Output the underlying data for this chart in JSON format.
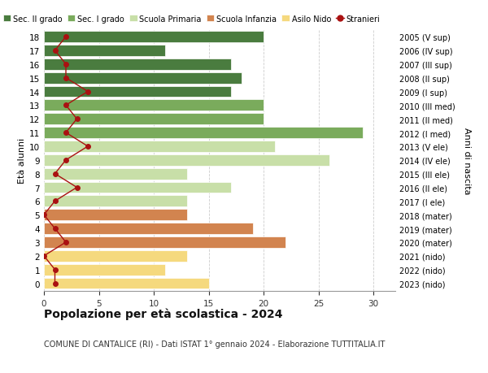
{
  "ages": [
    18,
    17,
    16,
    15,
    14,
    13,
    12,
    11,
    10,
    9,
    8,
    7,
    6,
    5,
    4,
    3,
    2,
    1,
    0
  ],
  "years": [
    "2005 (V sup)",
    "2006 (IV sup)",
    "2007 (III sup)",
    "2008 (II sup)",
    "2009 (I sup)",
    "2010 (III med)",
    "2011 (II med)",
    "2012 (I med)",
    "2013 (V ele)",
    "2014 (IV ele)",
    "2015 (III ele)",
    "2016 (II ele)",
    "2017 (I ele)",
    "2018 (mater)",
    "2019 (mater)",
    "2020 (mater)",
    "2021 (nido)",
    "2022 (nido)",
    "2023 (nido)"
  ],
  "bar_values": [
    20,
    11,
    17,
    18,
    17,
    20,
    20,
    29,
    21,
    26,
    13,
    17,
    13,
    13,
    19,
    22,
    13,
    11,
    15
  ],
  "bar_colors": [
    "#4a7c3f",
    "#4a7c3f",
    "#4a7c3f",
    "#4a7c3f",
    "#4a7c3f",
    "#7aab5c",
    "#7aab5c",
    "#7aab5c",
    "#c8dfa8",
    "#c8dfa8",
    "#c8dfa8",
    "#c8dfa8",
    "#c8dfa8",
    "#d2844f",
    "#d2844f",
    "#d2844f",
    "#f5d97e",
    "#f5d97e",
    "#f5d97e"
  ],
  "stranieri_values": [
    2,
    1,
    2,
    2,
    4,
    2,
    3,
    2,
    4,
    2,
    1,
    3,
    1,
    0,
    1,
    2,
    0,
    1,
    1
  ],
  "stranieri_color": "#aa1111",
  "legend_labels": [
    "Sec. II grado",
    "Sec. I grado",
    "Scuola Primaria",
    "Scuola Infanzia",
    "Asilo Nido",
    "Stranieri"
  ],
  "legend_colors": [
    "#4a7c3f",
    "#7aab5c",
    "#c8dfa8",
    "#d2844f",
    "#f5d97e",
    "#aa1111"
  ],
  "title": "Popolazione per età scolastica - 2024",
  "subtitle": "COMUNE DI CANTALICE (RI) - Dati ISTAT 1° gennaio 2024 - Elaborazione TUTTITALIA.IT",
  "ylabel_left": "Età alunni",
  "ylabel_right": "Anni di nascita",
  "xlim": [
    0,
    32
  ],
  "xticks": [
    0,
    5,
    10,
    15,
    20,
    25,
    30
  ],
  "background_color": "#ffffff",
  "grid_color": "#cccccc"
}
